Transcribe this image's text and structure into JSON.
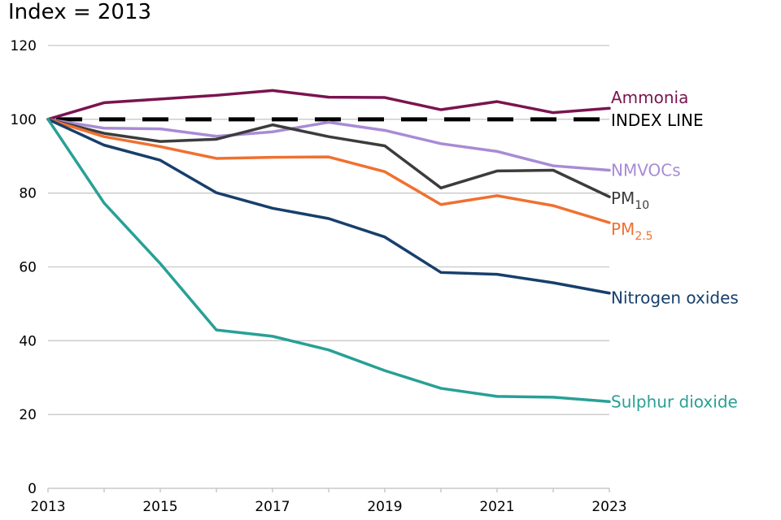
{
  "chart_data": {
    "type": "line",
    "title": "Index = 2013",
    "xlabel": "",
    "ylabel": "",
    "x": [
      2013,
      2014,
      2015,
      2016,
      2017,
      2018,
      2019,
      2020,
      2021,
      2022,
      2023
    ],
    "xticks": [
      "2013",
      "2015",
      "2017",
      "2019",
      "2021",
      "2023"
    ],
    "yticks": [
      "0",
      "20",
      "40",
      "60",
      "80",
      "100",
      "120"
    ],
    "ylim": [
      0,
      120
    ],
    "xlim": [
      2013,
      2023
    ],
    "grid": "horizontal",
    "index_line": {
      "name": "INDEX LINE",
      "value": 100,
      "color": "#000000"
    },
    "series": [
      {
        "name": "Ammonia",
        "color": "#7a1450",
        "values": [
          100,
          104.5,
          105.5,
          106.5,
          107.8,
          106,
          105.9,
          102.6,
          104.8,
          101.8,
          103
        ]
      },
      {
        "name": "NMVOCs",
        "color": "#a88bd4",
        "values": [
          100,
          97.6,
          97.4,
          95.4,
          96.6,
          99.2,
          97,
          93.4,
          91.3,
          87.4,
          86.2
        ]
      },
      {
        "name": "PM",
        "sub": "10",
        "color": "#3c3c3c",
        "values": [
          100,
          96.2,
          94,
          94.6,
          98.5,
          95.3,
          92.8,
          81.4,
          86,
          86.2,
          79
        ]
      },
      {
        "name": "PM",
        "sub": "2.5",
        "color": "#f07030",
        "values": [
          100,
          95.3,
          92.6,
          89.4,
          89.7,
          89.8,
          85.8,
          76.9,
          79.3,
          76.6,
          72
        ]
      },
      {
        "name": "Nitrogen oxides",
        "color": "#173f6b",
        "values": [
          100,
          93,
          88.9,
          80.1,
          75.9,
          73.1,
          68.1,
          58.5,
          58,
          55.7,
          52.9
        ]
      },
      {
        "name": "Sulphur dioxide",
        "color": "#28a096",
        "values": [
          100,
          77.3,
          60.9,
          42.9,
          41.2,
          37.5,
          31.9,
          27.1,
          24.9,
          24.7,
          23.5
        ]
      }
    ]
  }
}
